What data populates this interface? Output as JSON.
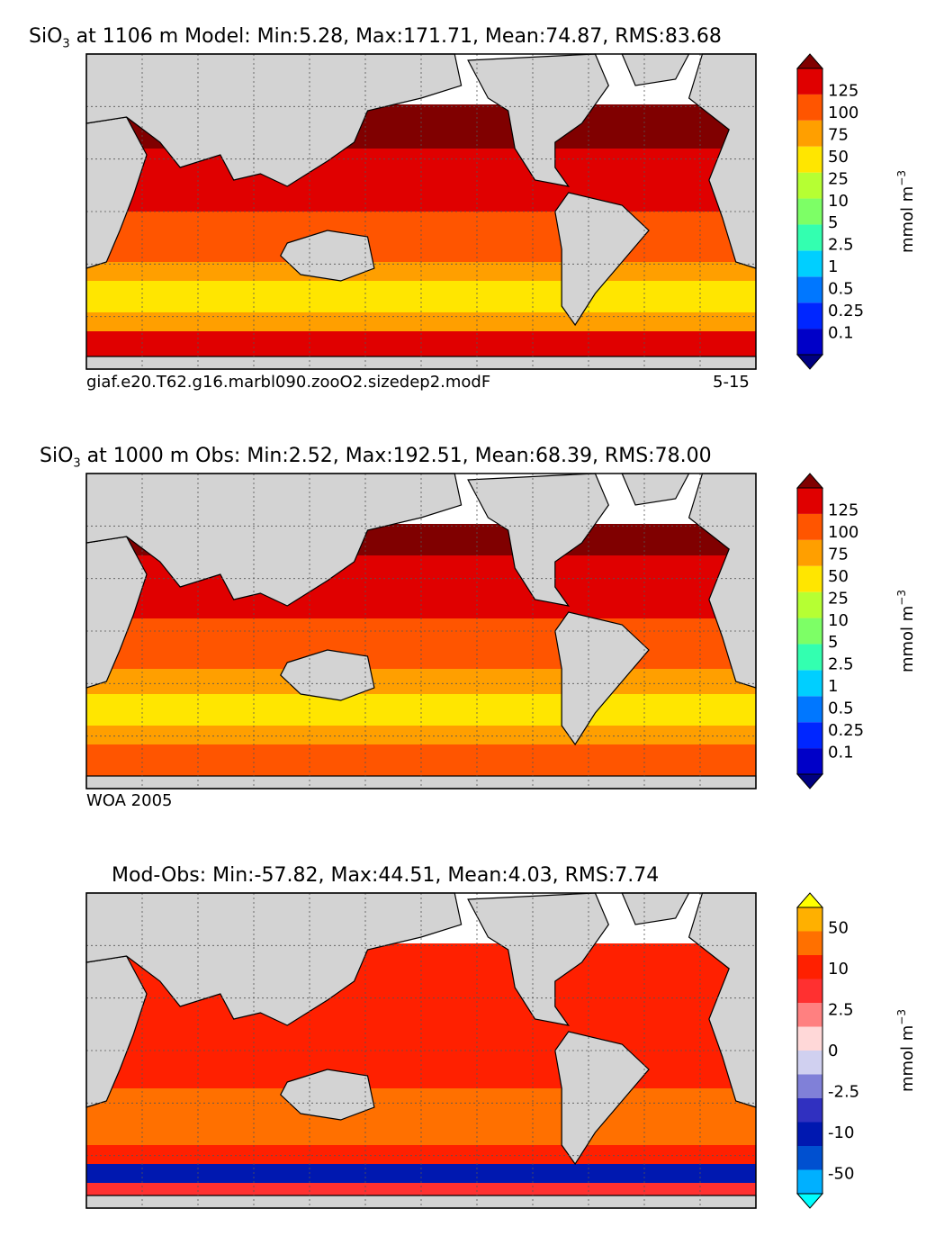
{
  "chart_data": [
    {
      "type": "heatmap",
      "title_prefix": "SiO",
      "title_sub": "3",
      "title_rest": " at 1106 m Model: Min:5.28, Max:171.71, Mean:74.87, RMS:83.68",
      "footer_left": "giaf.e20.T62.g16.marbl090.zooO2.sizedep2.modF",
      "footer_right": "5-15",
      "colorbar_label": "mmol m",
      "colorbar_exp": "−3",
      "colorbar_ticks": [
        "0.1",
        "0.25",
        "0.5",
        "1",
        "2.5",
        "5",
        "10",
        "25",
        "50",
        "75",
        "100",
        "125"
      ],
      "colors": [
        "#000080",
        "#0000c8",
        "#0026ff",
        "#0077ff",
        "#00cfff",
        "#33ffb0",
        "#7dff66",
        "#b6ff33",
        "#ffe600",
        "#ff9f00",
        "#ff5500",
        "#e00000",
        "#800000"
      ],
      "land_color": "#d3d3d3",
      "ice_color": "#ffffff",
      "bands": [
        {
          "c": 12,
          "y0": 0.18,
          "y1": 0.3
        },
        {
          "c": 11,
          "y0": 0.3,
          "y1": 0.5
        },
        {
          "c": 10,
          "y0": 0.5,
          "y1": 0.66
        },
        {
          "c": 9,
          "y0": 0.66,
          "y1": 0.72
        },
        {
          "c": 8,
          "y0": 0.72,
          "y1": 0.82
        },
        {
          "c": 9,
          "y0": 0.82,
          "y1": 0.88
        },
        {
          "c": 11,
          "y0": 0.88,
          "y1": 0.97
        }
      ]
    },
    {
      "type": "heatmap",
      "title_prefix": "SiO",
      "title_sub": "3",
      "title_rest": " at 1000 m Obs: Min:2.52, Max:192.51, Mean:68.39, RMS:78.00",
      "footer_left": "WOA 2005",
      "footer_right": "",
      "colorbar_label": "mmol m",
      "colorbar_exp": "−3",
      "colorbar_ticks": [
        "0.1",
        "0.25",
        "0.5",
        "1",
        "2.5",
        "5",
        "10",
        "25",
        "50",
        "75",
        "100",
        "125"
      ],
      "colors": [
        "#000080",
        "#0000c8",
        "#0026ff",
        "#0077ff",
        "#00cfff",
        "#33ffb0",
        "#7dff66",
        "#b6ff33",
        "#ffe600",
        "#ff9f00",
        "#ff5500",
        "#e00000",
        "#800000"
      ],
      "land_color": "#d3d3d3",
      "ice_color": "#ffffff",
      "bands": [
        {
          "c": 12,
          "y0": 0.16,
          "y1": 0.26
        },
        {
          "c": 11,
          "y0": 0.26,
          "y1": 0.46
        },
        {
          "c": 10,
          "y0": 0.46,
          "y1": 0.62
        },
        {
          "c": 9,
          "y0": 0.62,
          "y1": 0.7
        },
        {
          "c": 8,
          "y0": 0.7,
          "y1": 0.8
        },
        {
          "c": 9,
          "y0": 0.8,
          "y1": 0.86
        },
        {
          "c": 10,
          "y0": 0.86,
          "y1": 0.97
        }
      ]
    },
    {
      "type": "heatmap",
      "title_prefix": "Mod-Obs: Min:-57.82, Max:44.51, Mean:4.03, RMS:7.74",
      "title_sub": "",
      "title_rest": "",
      "footer_left": "",
      "footer_right": "",
      "colorbar_label": "mmol m",
      "colorbar_exp": "−3",
      "colorbar_ticks": [
        "-50",
        "",
        "-10",
        "",
        "-2.5",
        "",
        "0",
        "",
        "2.5",
        "",
        "10",
        "",
        "50"
      ],
      "colors": [
        "#00ffff",
        "#00b0ff",
        "#0050d0",
        "#0018b0",
        "#3030c0",
        "#8080d8",
        "#d0d0f0",
        "#ffd8d8",
        "#ff8080",
        "#ff3030",
        "#ff2000",
        "#ff7000",
        "#ffb000",
        "#ffff00"
      ],
      "land_color": "#d3d3d3",
      "ice_color": "#ffffff",
      "bands": [
        {
          "c": 10,
          "y0": 0.16,
          "y1": 0.62
        },
        {
          "c": 11,
          "y0": 0.62,
          "y1": 0.8
        },
        {
          "c": 10,
          "y0": 0.8,
          "y1": 0.86
        },
        {
          "c": 3,
          "y0": 0.86,
          "y1": 0.92
        },
        {
          "c": 9,
          "y0": 0.92,
          "y1": 0.97
        }
      ]
    }
  ]
}
